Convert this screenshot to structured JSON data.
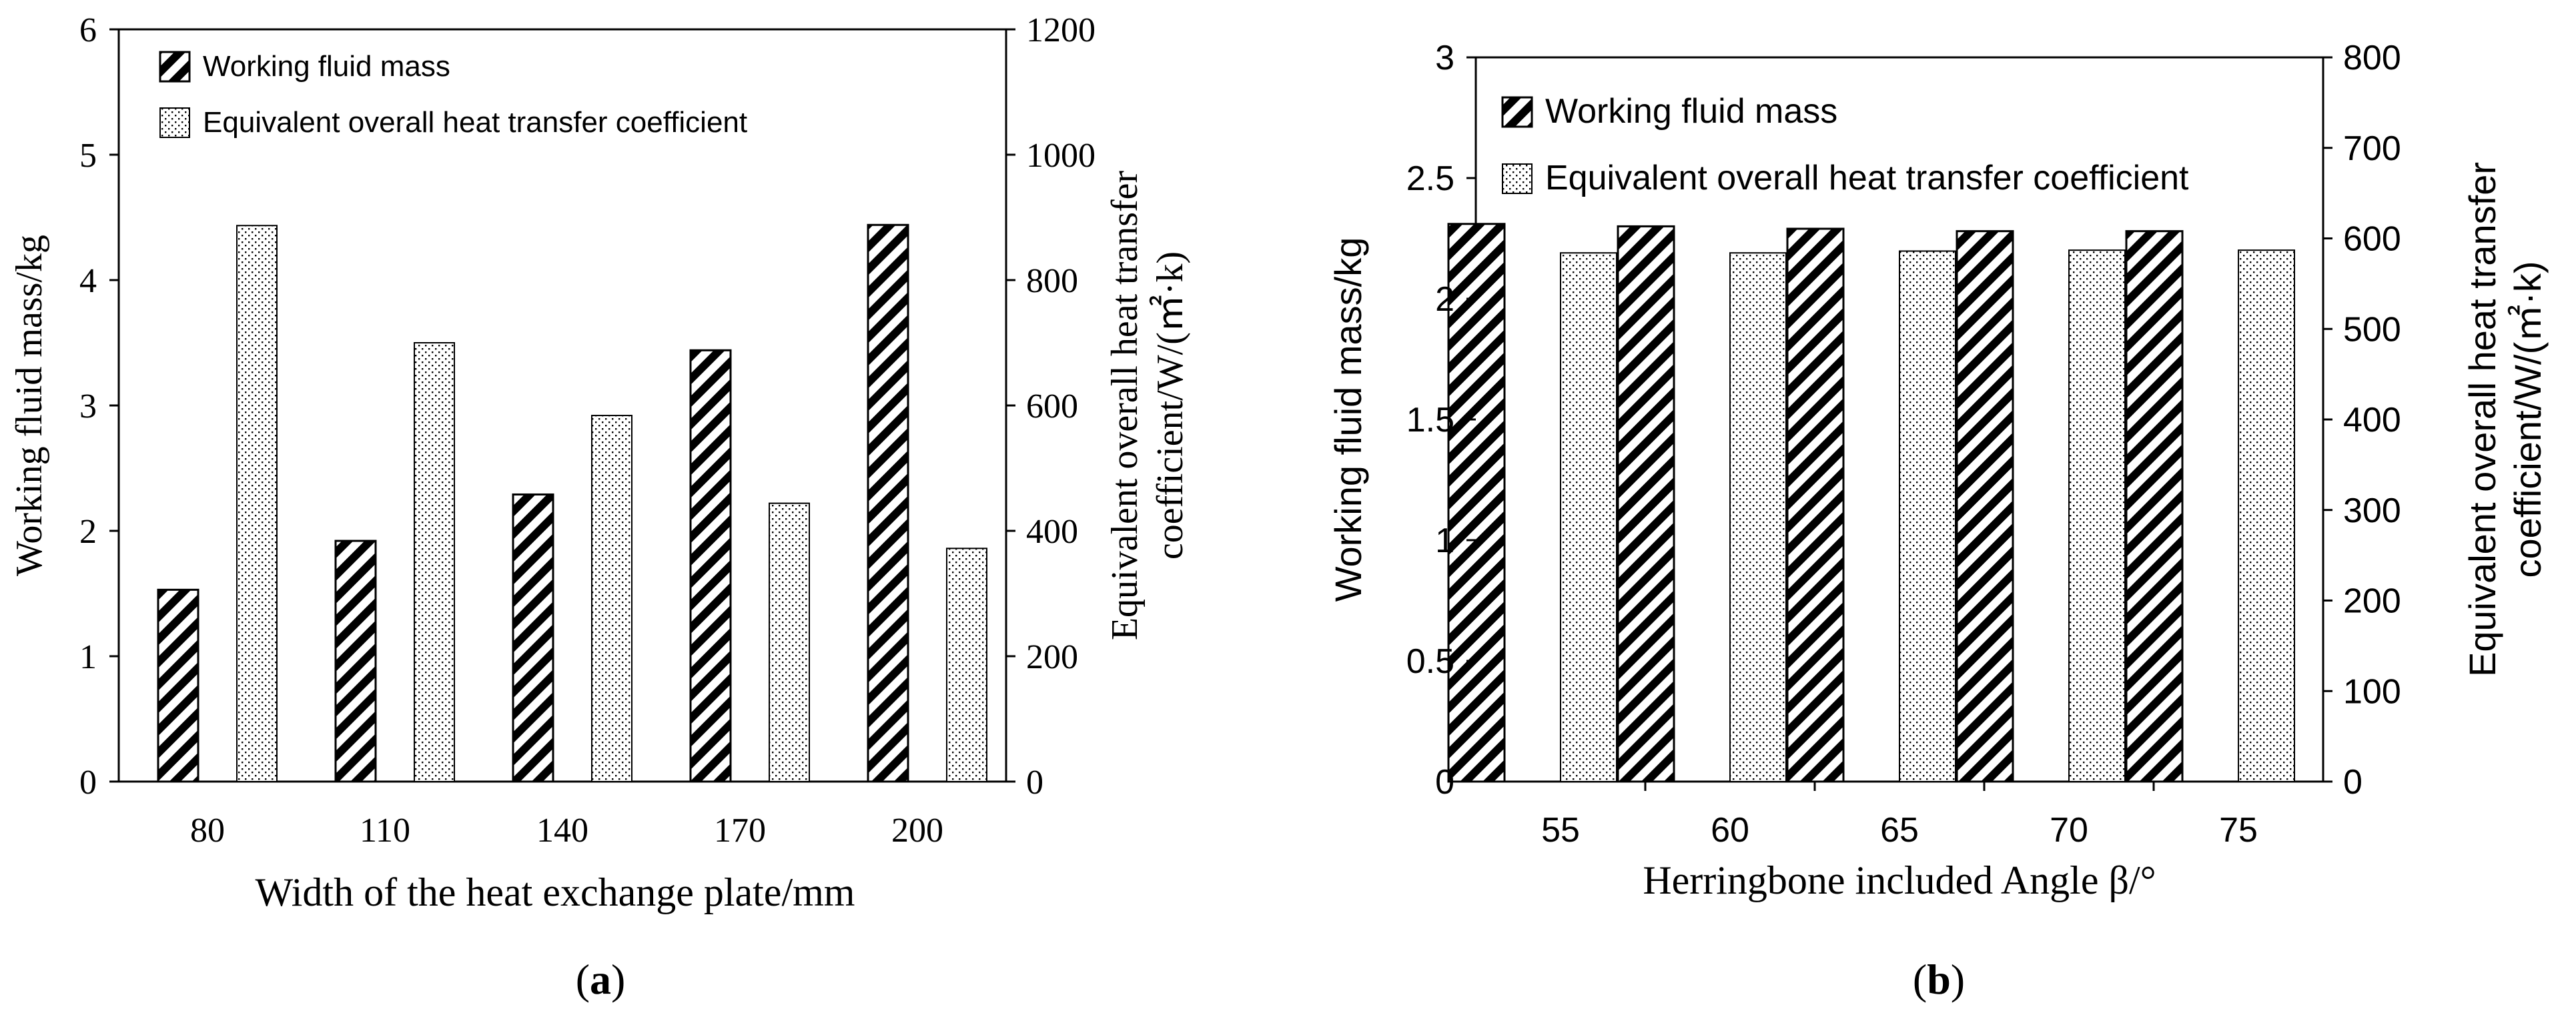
{
  "chart_data": [
    {
      "type": "bar",
      "panel_label": "a",
      "categories": [
        "80",
        "110",
        "140",
        "170",
        "200"
      ],
      "xlabel": "Width of the heat exchange plate/mm",
      "ylabel": "Working fluid mass/kg",
      "y2label_line1": "Equivalent overall heat transfer",
      "y2label_line2": "coefficient/W/(㎡·k)",
      "ylim": [
        0,
        6
      ],
      "y_ticks": [
        "0",
        "1",
        "2",
        "3",
        "4",
        "5",
        "6"
      ],
      "y2lim": [
        0,
        1200
      ],
      "y2_ticks": [
        "0",
        "200",
        "400",
        "600",
        "800",
        "1000",
        "1200"
      ],
      "legend_position": "top-left",
      "grid": false,
      "series": [
        {
          "name": "Working fluid mass",
          "axis": "left",
          "pattern": "hatch",
          "values": [
            1.53,
            1.92,
            2.29,
            3.44,
            4.44
          ]
        },
        {
          "name": "Equivalent overall heat transfer coefficient",
          "axis": "right",
          "pattern": "dots",
          "values": [
            887,
            700,
            584,
            444,
            372
          ]
        }
      ]
    },
    {
      "type": "bar",
      "panel_label": "b",
      "categories": [
        "55",
        "60",
        "65",
        "70",
        "75"
      ],
      "xlabel": "Herringbone included Angle β/°",
      "ylabel": "Working fluid mass/kg",
      "y2label_line1": "Equivalent overall heat transfer",
      "y2label_line2": "coefficient/W/(㎡·k)",
      "ylim": [
        0,
        3
      ],
      "y_ticks": [
        "0",
        "0.5",
        "1",
        "1.5",
        "2",
        "2.5",
        "3"
      ],
      "y2lim": [
        0,
        800
      ],
      "y2_ticks": [
        "0",
        "100",
        "200",
        "300",
        "400",
        "500",
        "600",
        "700",
        "800"
      ],
      "legend_position": "top-left",
      "grid": false,
      "series": [
        {
          "name": "Working fluid mass",
          "axis": "left",
          "pattern": "hatch",
          "values": [
            2.31,
            2.3,
            2.29,
            2.28,
            2.28
          ]
        },
        {
          "name": "Equivalent overall heat transfer coefficient",
          "axis": "right",
          "pattern": "dots",
          "values": [
            584,
            584,
            586,
            587,
            587
          ]
        }
      ]
    }
  ]
}
